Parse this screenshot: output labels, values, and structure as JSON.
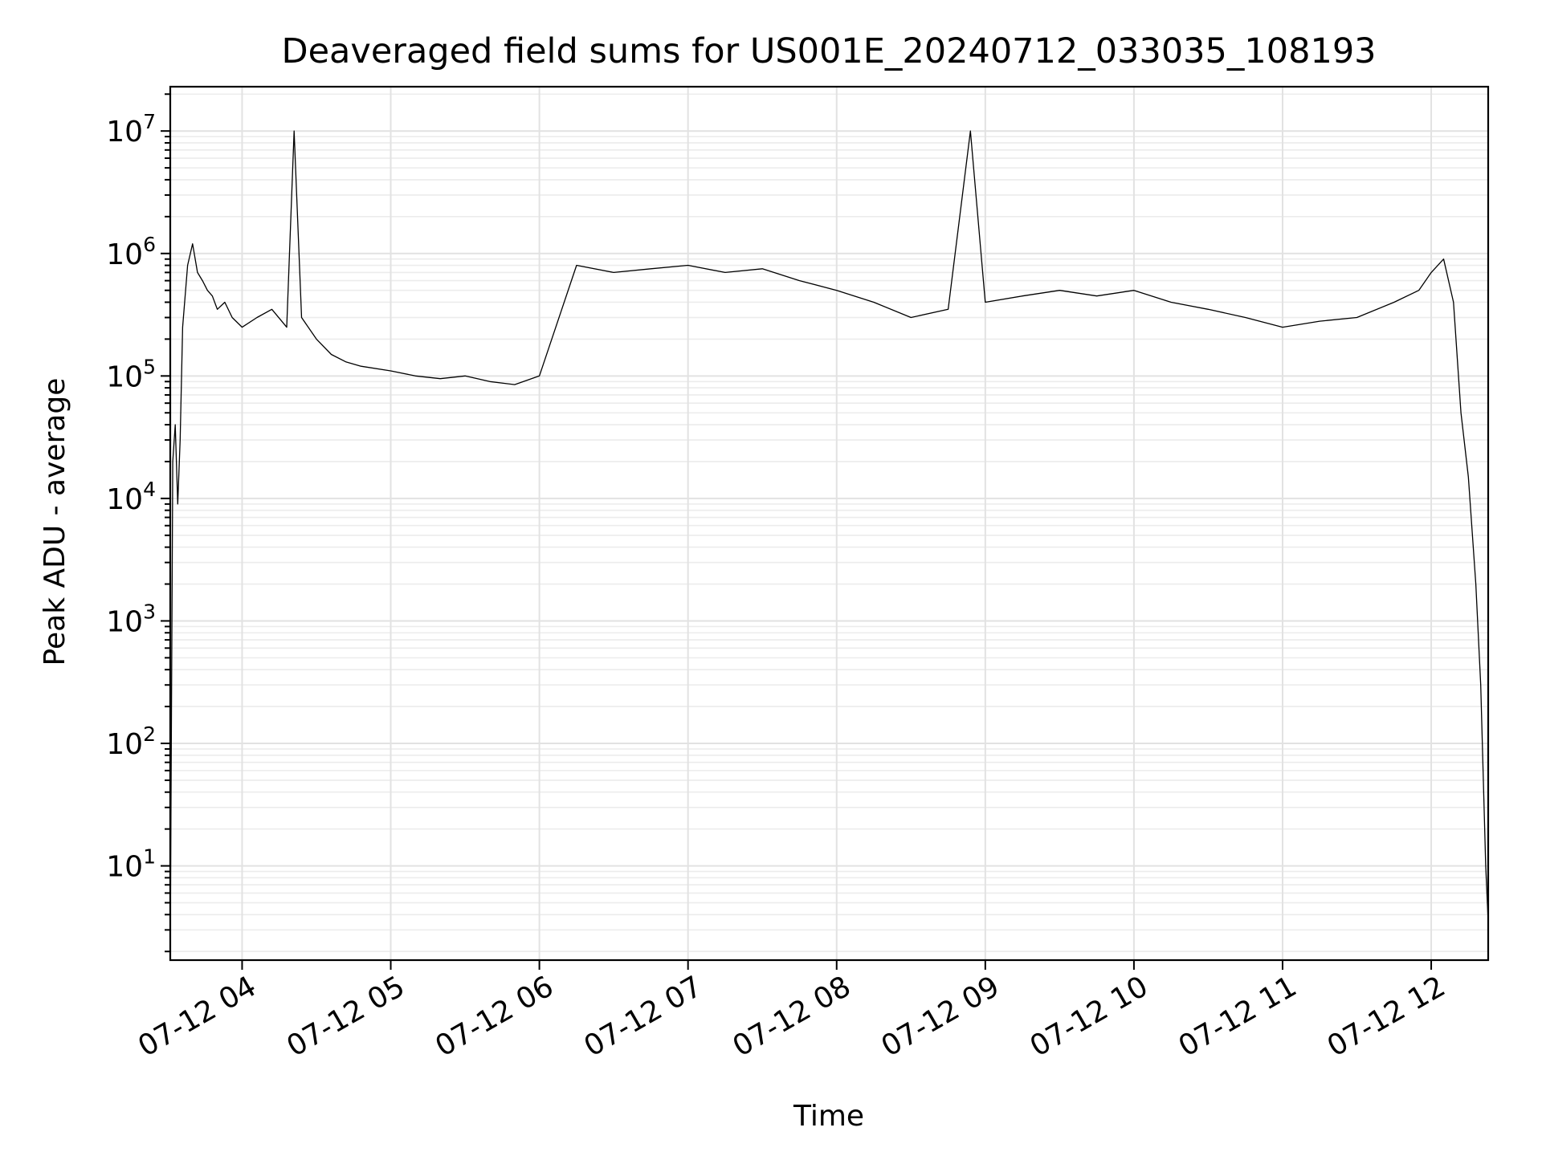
{
  "chart_data": {
    "type": "line",
    "title": "Deaveraged field sums for US001E_20240712_033035_108193",
    "xlabel": "Time",
    "ylabel": "Peak ADU - average",
    "y_scale": "log",
    "ylim": [
      1.7,
      23000000
    ],
    "xlim": [
      "2024-07-12T03:31:00",
      "2024-07-12T12:23:00"
    ],
    "grid": "on (major and minor)",
    "legend": "none",
    "x_ticks": [
      "2024-07-12T04:00:00",
      "2024-07-12T05:00:00",
      "2024-07-12T06:00:00",
      "2024-07-12T07:00:00",
      "2024-07-12T08:00:00",
      "2024-07-12T09:00:00",
      "2024-07-12T10:00:00",
      "2024-07-12T11:00:00",
      "2024-07-12T12:00:00"
    ],
    "x_tick_labels": [
      "07-12 04",
      "07-12 05",
      "07-12 06",
      "07-12 07",
      "07-12 08",
      "07-12 09",
      "07-12 10",
      "07-12 11",
      "07-12 12"
    ],
    "y_ticks": [
      10,
      100,
      1000,
      10000,
      100000,
      1000000,
      10000000
    ],
    "y_tick_labels": [
      {
        "base": "10",
        "exp": "1"
      },
      {
        "base": "10",
        "exp": "2"
      },
      {
        "base": "10",
        "exp": "3"
      },
      {
        "base": "10",
        "exp": "4"
      },
      {
        "base": "10",
        "exp": "5"
      },
      {
        "base": "10",
        "exp": "6"
      },
      {
        "base": "10",
        "exp": "7"
      }
    ],
    "line_color": "#000000",
    "series": [
      {
        "x": [
          "2024-07-12T03:31:00",
          "2024-07-12T03:32:00",
          "2024-07-12T03:33:00",
          "2024-07-12T03:34:00",
          "2024-07-12T03:35:00",
          "2024-07-12T03:36:00",
          "2024-07-12T03:38:00",
          "2024-07-12T03:40:00",
          "2024-07-12T03:42:00",
          "2024-07-12T03:44:00",
          "2024-07-12T03:46:00",
          "2024-07-12T03:48:00",
          "2024-07-12T03:50:00",
          "2024-07-12T03:53:00",
          "2024-07-12T03:56:00",
          "2024-07-12T04:00:00",
          "2024-07-12T04:06:00",
          "2024-07-12T04:12:00",
          "2024-07-12T04:18:00",
          "2024-07-12T04:21:00",
          "2024-07-12T04:24:00",
          "2024-07-12T04:30:00",
          "2024-07-12T04:36:00",
          "2024-07-12T04:42:00",
          "2024-07-12T04:48:00",
          "2024-07-12T05:00:00",
          "2024-07-12T05:10:00",
          "2024-07-12T05:20:00",
          "2024-07-12T05:30:00",
          "2024-07-12T05:40:00",
          "2024-07-12T05:50:00",
          "2024-07-12T06:00:00",
          "2024-07-12T06:15:00",
          "2024-07-12T06:30:00",
          "2024-07-12T06:45:00",
          "2024-07-12T07:00:00",
          "2024-07-12T07:15:00",
          "2024-07-12T07:30:00",
          "2024-07-12T07:45:00",
          "2024-07-12T08:00:00",
          "2024-07-12T08:15:00",
          "2024-07-12T08:30:00",
          "2024-07-12T08:45:00",
          "2024-07-12T08:54:00",
          "2024-07-12T09:00:00",
          "2024-07-12T09:15:00",
          "2024-07-12T09:30:00",
          "2024-07-12T09:45:00",
          "2024-07-12T10:00:00",
          "2024-07-12T10:15:00",
          "2024-07-12T10:30:00",
          "2024-07-12T10:45:00",
          "2024-07-12T11:00:00",
          "2024-07-12T11:15:00",
          "2024-07-12T11:30:00",
          "2024-07-12T11:45:00",
          "2024-07-12T11:55:00",
          "2024-07-12T12:00:00",
          "2024-07-12T12:05:00",
          "2024-07-12T12:09:00",
          "2024-07-12T12:12:00",
          "2024-07-12T12:15:00",
          "2024-07-12T12:18:00",
          "2024-07-12T12:20:00",
          "2024-07-12T12:22:00",
          "2024-07-12T12:23:00"
        ],
        "y": [
          2,
          20000,
          40000,
          9000,
          30000,
          250000,
          800000,
          1200000,
          700000,
          600000,
          500000,
          450000,
          350000,
          400000,
          300000,
          250000,
          300000,
          350000,
          250000,
          10000000,
          300000,
          200000,
          150000,
          130000,
          120000,
          110000,
          100000,
          95000,
          100000,
          90000,
          85000,
          100000,
          800000,
          700000,
          750000,
          800000,
          700000,
          750000,
          600000,
          500000,
          400000,
          300000,
          350000,
          10000000,
          400000,
          450000,
          500000,
          450000,
          500000,
          400000,
          350000,
          300000,
          250000,
          280000,
          300000,
          400000,
          500000,
          700000,
          900000,
          400000,
          50000,
          15000,
          2000,
          300,
          10,
          3.5
        ]
      }
    ]
  }
}
